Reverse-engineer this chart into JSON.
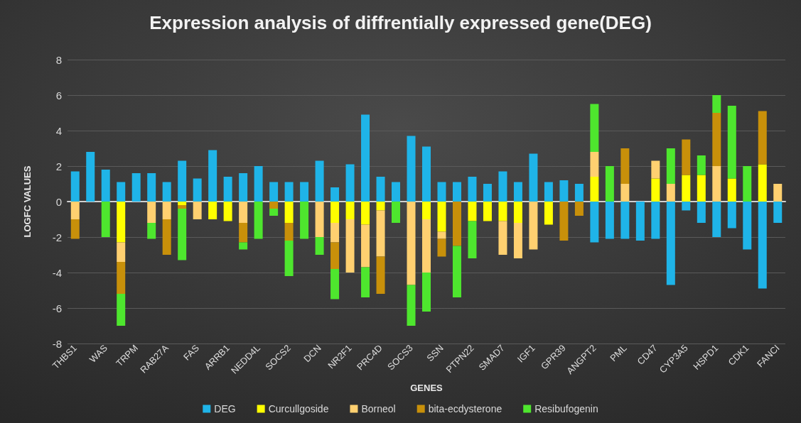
{
  "chart_data": {
    "type": "bar",
    "title": "Expression analysis of diffrentially expressed gene(DEG)",
    "xlabel": "GENES",
    "ylabel": "LOGFC VALUES",
    "categories": [
      "THBS1",
      null,
      "WAS",
      null,
      "TRPM",
      null,
      "RAB27A",
      null,
      "FAS",
      null,
      "ARRB1",
      null,
      "NEDD4L",
      null,
      "SOCS2",
      null,
      "DCN",
      null,
      "NR2F1",
      null,
      "PRC4D",
      null,
      "SOCS3",
      null,
      "SSN",
      null,
      "PTPN22",
      null,
      "SMAD7",
      null,
      "IGF1",
      null,
      "GPR39",
      null,
      "ANGPT2",
      null,
      "PML",
      null,
      "CD47",
      null,
      "CYP3A5",
      null,
      "HSPD1",
      null,
      "CDK1",
      null,
      "FANCI"
    ],
    "stacked": true,
    "ylim": [
      -8,
      8
    ],
    "yticks": [
      -8,
      -6,
      -4,
      -2,
      0,
      2,
      4,
      6,
      8
    ],
    "grid": "y",
    "legend": "bottom",
    "series": [
      {
        "name": "DEG",
        "color": "#1fb4e8",
        "values": [
          1.7,
          2.8,
          1.8,
          1.1,
          1.6,
          1.6,
          1.1,
          2.3,
          1.3,
          2.9,
          1.4,
          1.6,
          2.0,
          1.1,
          1.1,
          1.1,
          2.3,
          0.8,
          2.1,
          4.9,
          1.4,
          1.1,
          3.7,
          3.1,
          1.1,
          1.1,
          1.4,
          1.0,
          1.7,
          1.1,
          2.7,
          1.1,
          1.2,
          1.0,
          -2.3,
          -2.1,
          -2.1,
          -2.2,
          -2.1,
          -4.7,
          -0.5,
          -1.2,
          -2.0,
          -1.5,
          -2.7,
          -4.9,
          -1.2
        ]
      },
      {
        "name": "Curcullgoside",
        "color": "#ffff00",
        "values": [
          null,
          null,
          null,
          -2.3,
          null,
          null,
          null,
          -0.2,
          null,
          -1.0,
          -1.1,
          null,
          null,
          null,
          -1.2,
          null,
          null,
          -1.2,
          -1.0,
          -1.3,
          -0.5,
          null,
          null,
          -1.0,
          -1.7,
          null,
          -1.1,
          -1.1,
          -1.1,
          -1.2,
          null,
          -1.3,
          null,
          null,
          1.4,
          null,
          null,
          null,
          1.3,
          null,
          1.5,
          1.5,
          null,
          1.3,
          null,
          2.1,
          null
        ]
      },
      {
        "name": "Borneol",
        "color": "#ffd070",
        "values": [
          -1.0,
          null,
          null,
          -1.1,
          null,
          -1.2,
          -1.0,
          null,
          -1.0,
          null,
          null,
          -1.2,
          null,
          null,
          null,
          null,
          -2.0,
          -1.1,
          -3.0,
          -2.4,
          -2.6,
          null,
          -4.7,
          -3.0,
          -0.4,
          null,
          null,
          null,
          -1.9,
          -2.0,
          -2.7,
          null,
          null,
          null,
          1.4,
          null,
          1.0,
          null,
          1.0,
          1.0,
          null,
          null,
          2.0,
          null,
          null,
          null,
          1.0
        ]
      },
      {
        "name": "bita-ecdysterone",
        "color": "#c8900a",
        "values": [
          -1.1,
          null,
          null,
          -1.8,
          null,
          null,
          -2.0,
          -0.2,
          null,
          null,
          null,
          -1.1,
          null,
          -0.4,
          -1.0,
          null,
          null,
          -1.5,
          null,
          null,
          -2.1,
          null,
          null,
          null,
          -1.0,
          -2.5,
          null,
          null,
          null,
          null,
          null,
          null,
          -2.2,
          -0.8,
          null,
          null,
          2.0,
          null,
          null,
          null,
          2.0,
          null,
          3.0,
          null,
          null,
          3.0,
          null
        ]
      },
      {
        "name": "Resibufogenin",
        "color": "#4ee62e",
        "values": [
          null,
          null,
          -2.0,
          -1.8,
          null,
          -0.9,
          null,
          -2.9,
          null,
          null,
          null,
          -0.4,
          -2.1,
          -0.4,
          -2.0,
          -2.1,
          -1.0,
          -1.7,
          null,
          -1.7,
          null,
          -1.2,
          -2.3,
          -2.2,
          null,
          -2.9,
          -2.1,
          null,
          null,
          null,
          null,
          null,
          null,
          null,
          2.7,
          2.0,
          null,
          null,
          null,
          2.0,
          null,
          1.1,
          1.0,
          4.1,
          2.0,
          null,
          null
        ]
      }
    ]
  }
}
